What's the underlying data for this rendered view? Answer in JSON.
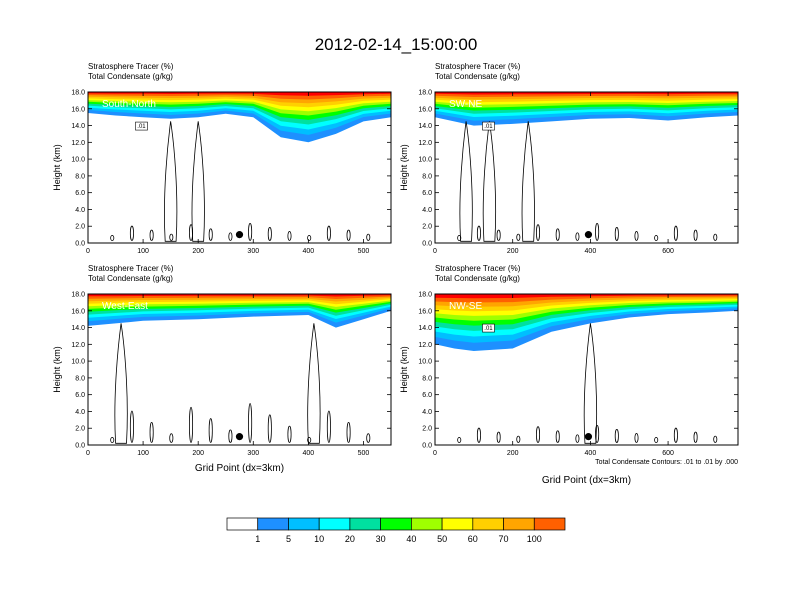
{
  "title": "2012-02-14_15:00:00",
  "chart_data": {
    "type": "heatmap",
    "colorbar": {
      "labels": [
        "1",
        "5",
        "10",
        "20",
        "30",
        "40",
        "50",
        "60",
        "70",
        "100"
      ],
      "colors": [
        "#ffffff",
        "#1e90ff",
        "#00bfff",
        "#00ffff",
        "#00e0a0",
        "#00ff00",
        "#9fff00",
        "#ffff00",
        "#ffd000",
        "#ffa500",
        "#ff6000",
        "#ff0000"
      ]
    },
    "footnote": "Total Condensate Contours: .01 to .01 by .000",
    "panels": [
      {
        "id": "south-north",
        "region_label": "South-North",
        "title_line1": "Stratosphere Tracer   (%)",
        "title_line2": "Total Condensate   (g/kg)",
        "ylabel": "Height (km)",
        "xlabel": "",
        "xlim": [
          0,
          550
        ],
        "ylim": [
          0,
          18
        ],
        "xticks": [
          "0",
          "100",
          "200",
          "300",
          "400",
          "500"
        ],
        "xtick_values": [
          0,
          100,
          200,
          300,
          400,
          500
        ],
        "yticks": [
          "0.0",
          "2.0",
          "4.0",
          "6.0",
          "8.0",
          "10.0",
          "12.0",
          "14.0",
          "16.0",
          "18.0"
        ],
        "contour_label": ".01",
        "marker": {
          "x": 275,
          "y": 1.0
        },
        "tracer_profile": [
          {
            "x": 0,
            "h": 15.5
          },
          {
            "x": 50,
            "h": 15.2
          },
          {
            "x": 100,
            "h": 15.0
          },
          {
            "x": 150,
            "h": 14.8
          },
          {
            "x": 200,
            "h": 15.0
          },
          {
            "x": 250,
            "h": 15.4
          },
          {
            "x": 300,
            "h": 15.0
          },
          {
            "x": 350,
            "h": 12.6
          },
          {
            "x": 400,
            "h": 12.0
          },
          {
            "x": 450,
            "h": 13.0
          },
          {
            "x": 500,
            "h": 14.5
          },
          {
            "x": 550,
            "h": 15.0
          }
        ]
      },
      {
        "id": "sw-ne",
        "region_label": "SW-NE",
        "title_line1": "Stratosphere Tracer   (%)",
        "title_line2": "Total Condensate   (g/kg)",
        "ylabel": "Height (km)",
        "xlabel": "",
        "xlim": [
          0,
          780
        ],
        "ylim": [
          0,
          18
        ],
        "xticks": [
          "0",
          "200",
          "400",
          "600"
        ],
        "xtick_values": [
          0,
          200,
          400,
          600
        ],
        "yticks": [
          "0.0",
          "2.0",
          "4.0",
          "6.0",
          "8.0",
          "10.0",
          "12.0",
          "14.0",
          "16.0",
          "18.0"
        ],
        "contour_label": ".01",
        "marker": {
          "x": 395,
          "y": 1.0
        },
        "tracer_profile": [
          {
            "x": 0,
            "h": 15.0
          },
          {
            "x": 100,
            "h": 14.0
          },
          {
            "x": 200,
            "h": 14.2
          },
          {
            "x": 300,
            "h": 14.5
          },
          {
            "x": 400,
            "h": 14.8
          },
          {
            "x": 500,
            "h": 14.9
          },
          {
            "x": 600,
            "h": 14.6
          },
          {
            "x": 700,
            "h": 15.0
          },
          {
            "x": 780,
            "h": 15.2
          }
        ]
      },
      {
        "id": "west-east",
        "region_label": "West-East",
        "title_line1": "Stratosphere Tracer   (%)",
        "title_line2": "Total Condensate   (g/kg)",
        "ylabel": "Height (km)",
        "xlabel": "Grid Point (dx=3km)",
        "xlim": [
          0,
          550
        ],
        "ylim": [
          0,
          18
        ],
        "xticks": [
          "0",
          "100",
          "200",
          "300",
          "400",
          "500"
        ],
        "xtick_values": [
          0,
          100,
          200,
          300,
          400,
          500
        ],
        "yticks": [
          "0.0",
          "2.0",
          "4.0",
          "6.0",
          "8.0",
          "10.0",
          "12.0",
          "14.0",
          "16.0",
          "18.0"
        ],
        "contour_label": "",
        "marker": {
          "x": 275,
          "y": 1.0
        },
        "tracer_profile": [
          {
            "x": 0,
            "h": 14.2
          },
          {
            "x": 50,
            "h": 14.5
          },
          {
            "x": 100,
            "h": 14.8
          },
          {
            "x": 200,
            "h": 15.0
          },
          {
            "x": 300,
            "h": 15.3
          },
          {
            "x": 400,
            "h": 15.5
          },
          {
            "x": 450,
            "h": 14.0
          },
          {
            "x": 500,
            "h": 15.0
          },
          {
            "x": 550,
            "h": 16.0
          }
        ]
      },
      {
        "id": "nw-se",
        "region_label": "NW-SE",
        "title_line1": "Stratosphere Tracer   (%)",
        "title_line2": "Total Condensate   (g/kg)",
        "ylabel": "Height (km)",
        "xlabel": "Grid Point (dx=3km)",
        "xlim": [
          0,
          780
        ],
        "ylim": [
          0,
          18
        ],
        "xticks": [
          "0",
          "200",
          "400",
          "600"
        ],
        "xtick_values": [
          0,
          200,
          400,
          600
        ],
        "yticks": [
          "0.0",
          "2.0",
          "4.0",
          "6.0",
          "8.0",
          "10.0",
          "12.0",
          "14.0",
          "16.0",
          "18.0"
        ],
        "contour_label": ".01",
        "marker": {
          "x": 395,
          "y": 1.0
        },
        "tracer_profile": [
          {
            "x": 0,
            "h": 12.0
          },
          {
            "x": 50,
            "h": 11.5
          },
          {
            "x": 100,
            "h": 11.2
          },
          {
            "x": 200,
            "h": 11.5
          },
          {
            "x": 300,
            "h": 13.5
          },
          {
            "x": 400,
            "h": 14.5
          },
          {
            "x": 500,
            "h": 15.2
          },
          {
            "x": 600,
            "h": 15.6
          },
          {
            "x": 700,
            "h": 15.8
          },
          {
            "x": 780,
            "h": 16.0
          }
        ]
      }
    ]
  }
}
